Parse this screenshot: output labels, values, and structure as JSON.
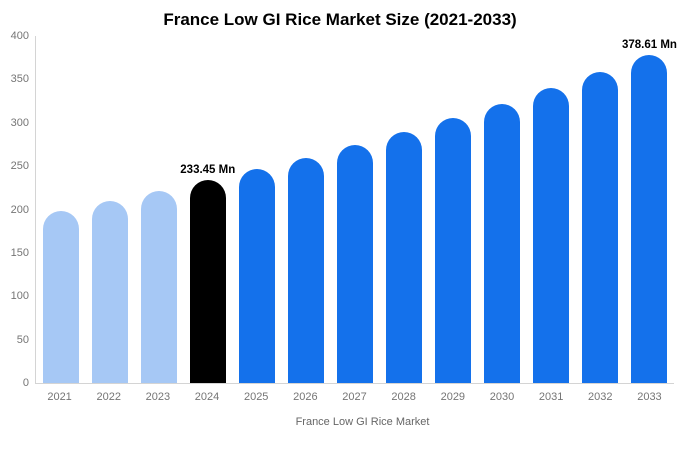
{
  "title": "France Low GI Rice Market Size (2021-2033)",
  "legend": {
    "label": "France Low GI Rice Market",
    "swatch_color": "#a6c8f5"
  },
  "colors": {
    "historical_bar": "#a6c8f5",
    "base_year_bar": "#000000",
    "forecast_bar": "#1471eb",
    "axis_text": "#757575",
    "axis_line": "#d4d4d4"
  },
  "chart_data": {
    "type": "bar",
    "title": "France Low GI Rice Market Size (2021-2033)",
    "categories": [
      "2021",
      "2022",
      "2023",
      "2024",
      "2025",
      "2026",
      "2027",
      "2028",
      "2029",
      "2030",
      "2031",
      "2032",
      "2033"
    ],
    "values": [
      198.7,
      209.7,
      221.2,
      233.45,
      246.3,
      259.9,
      274.2,
      289.4,
      305.4,
      322.2,
      340.0,
      358.8,
      378.61
    ],
    "bar_colors": [
      "#a6c8f5",
      "#a6c8f5",
      "#a6c8f5",
      "#000000",
      "#1471eb",
      "#1471eb",
      "#1471eb",
      "#1471eb",
      "#1471eb",
      "#1471eb",
      "#1471eb",
      "#1471eb",
      "#1471eb"
    ],
    "annotations": [
      {
        "index": 3,
        "text": "233.45 Mn"
      },
      {
        "index": 12,
        "text": "378.61 Mn"
      }
    ],
    "xlabel": "",
    "ylabel": "",
    "ylim": [
      0,
      400
    ],
    "yticks": [
      0,
      50,
      100,
      150,
      200,
      250,
      300,
      350,
      400
    ],
    "grid": false,
    "legend_position": "bottom",
    "unit": "Mn"
  }
}
